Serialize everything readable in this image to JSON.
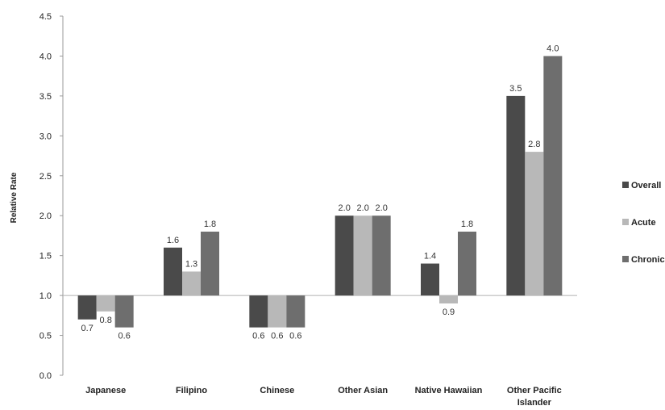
{
  "chart_data": {
    "type": "bar",
    "title": "",
    "xlabel": "",
    "ylabel": "Relative Rate",
    "baseline": 1.0,
    "ylim": [
      0,
      4.5
    ],
    "yticks": [
      "0.0",
      "0.5",
      "1.0",
      "1.5",
      "2.0",
      "2.5",
      "3.0",
      "3.5",
      "4.0",
      "4.5"
    ],
    "categories": [
      [
        "Japanese"
      ],
      [
        "Filipino"
      ],
      [
        "Chinese"
      ],
      [
        "Other Asian"
      ],
      [
        "Native Hawaiian"
      ],
      [
        "Other Pacific",
        "Islander"
      ]
    ],
    "series": [
      {
        "name": "Overall",
        "color": "#4a4a4a",
        "values": [
          0.7,
          1.6,
          0.6,
          2.0,
          1.4,
          3.5
        ],
        "labels": [
          "0.7",
          "1.6",
          "0.6",
          "2.0",
          "1.4",
          "3.5"
        ]
      },
      {
        "name": "Acute",
        "color": "#b8b8b8",
        "values": [
          0.8,
          1.3,
          0.6,
          2.0,
          0.9,
          2.8
        ],
        "labels": [
          "0.8",
          "1.3",
          "0.6",
          "2.0",
          "0.9",
          "2.8"
        ]
      },
      {
        "name": "Chronic",
        "color": "#6e6e6e",
        "values": [
          0.6,
          1.8,
          0.6,
          2.0,
          1.8,
          4.0
        ],
        "labels": [
          "0.6",
          "1.8",
          "0.6",
          "2.0",
          "1.8",
          "4.0"
        ]
      }
    ],
    "legend_position": "right",
    "grid": false
  }
}
